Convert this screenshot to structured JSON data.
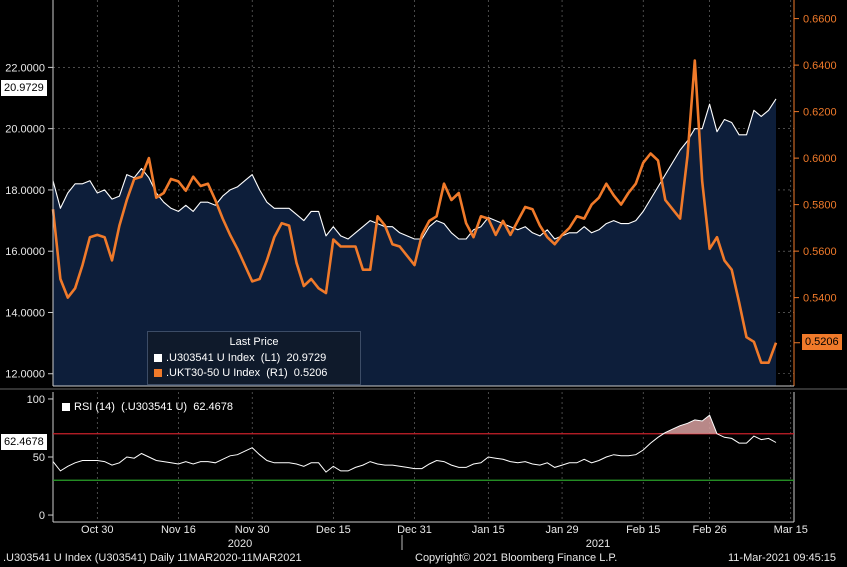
{
  "chart_data": {
    "type": "line",
    "x": [
      "Oct 22",
      "Oct 23",
      "Oct 26",
      "Oct 27",
      "Oct 28",
      "Oct 29",
      "Oct 30",
      "Nov 2",
      "Nov 3",
      "Nov 4",
      "Nov 5",
      "Nov 6",
      "Nov 9",
      "Nov 10",
      "Nov 11",
      "Nov 12",
      "Nov 13",
      "Nov 16",
      "Nov 17",
      "Nov 18",
      "Nov 19",
      "Nov 20",
      "Nov 23",
      "Nov 24",
      "Nov 25",
      "Nov 26",
      "Nov 27",
      "Nov 30",
      "Dec 1",
      "Dec 2",
      "Dec 3",
      "Dec 4",
      "Dec 7",
      "Dec 8",
      "Dec 9",
      "Dec 10",
      "Dec 11",
      "Dec 14",
      "Dec 15",
      "Dec 16",
      "Dec 17",
      "Dec 18",
      "Dec 21",
      "Dec 22",
      "Dec 23",
      "Dec 24",
      "Dec 28",
      "Dec 29",
      "Dec 30",
      "Dec 31",
      "Jan 4",
      "Jan 5",
      "Jan 6",
      "Jan 7",
      "Jan 8",
      "Jan 11",
      "Jan 12",
      "Jan 13",
      "Jan 14",
      "Jan 15",
      "Jan 18",
      "Jan 19",
      "Jan 20",
      "Jan 21",
      "Jan 22",
      "Jan 25",
      "Jan 26",
      "Jan 27",
      "Jan 28",
      "Jan 29",
      "Feb 1",
      "Feb 2",
      "Feb 3",
      "Feb 4",
      "Feb 5",
      "Feb 8",
      "Feb 9",
      "Feb 10",
      "Feb 11",
      "Feb 12",
      "Feb 15",
      "Feb 16",
      "Feb 17",
      "Feb 18",
      "Feb 19",
      "Feb 22",
      "Feb 23",
      "Feb 24",
      "Feb 25",
      "Feb 26",
      "Mar 1",
      "Mar 2",
      "Mar 3",
      "Mar 4",
      "Mar 5",
      "Mar 8",
      "Mar 9",
      "Mar 10",
      "Mar 11"
    ],
    "series": [
      {
        "name": ".U303541 U Index  (L1)",
        "axis": "left",
        "color": "#ffffff",
        "values": [
          18.3,
          17.4,
          17.9,
          18.2,
          18.2,
          18.3,
          17.9,
          18.0,
          17.7,
          17.8,
          18.5,
          18.4,
          18.7,
          18.4,
          17.9,
          17.6,
          17.4,
          17.3,
          17.5,
          17.3,
          17.6,
          17.6,
          17.5,
          17.8,
          18.0,
          18.1,
          18.3,
          18.5,
          18.0,
          17.6,
          17.4,
          17.4,
          17.4,
          17.2,
          17.0,
          17.3,
          17.3,
          16.5,
          16.8,
          16.5,
          16.4,
          16.6,
          16.8,
          17.0,
          16.9,
          16.8,
          16.8,
          16.6,
          16.5,
          16.4,
          16.4,
          16.8,
          17.0,
          16.9,
          16.6,
          16.4,
          16.4,
          16.7,
          16.8,
          17.1,
          17.0,
          16.9,
          16.8,
          16.7,
          16.8,
          16.6,
          16.5,
          16.7,
          16.4,
          16.5,
          16.6,
          16.6,
          16.8,
          16.6,
          16.7,
          16.9,
          17.0,
          16.9,
          16.9,
          17.0,
          17.3,
          17.7,
          18.1,
          18.5,
          18.9,
          19.3,
          19.6,
          20.0,
          20.0,
          20.8,
          19.9,
          20.3,
          20.2,
          19.8,
          19.8,
          20.6,
          20.4,
          20.6,
          20.9729
        ]
      },
      {
        "name": ".UKT30-50 U Index  (R1)",
        "axis": "right",
        "color": "#f07a2a",
        "values": [
          0.578,
          0.548,
          0.54,
          0.544,
          0.554,
          0.566,
          0.567,
          0.566,
          0.556,
          0.571,
          0.582,
          0.591,
          0.592,
          0.6,
          0.583,
          0.585,
          0.591,
          0.59,
          0.586,
          0.592,
          0.588,
          0.589,
          0.582,
          0.574,
          0.567,
          0.561,
          0.554,
          0.547,
          0.548,
          0.556,
          0.566,
          0.572,
          0.571,
          0.555,
          0.545,
          0.548,
          0.544,
          0.542,
          0.565,
          0.562,
          0.562,
          0.562,
          0.552,
          0.552,
          0.575,
          0.571,
          0.563,
          0.562,
          0.558,
          0.554,
          0.567,
          0.573,
          0.575,
          0.589,
          0.582,
          0.585,
          0.572,
          0.566,
          0.575,
          0.574,
          0.567,
          0.573,
          0.567,
          0.573,
          0.579,
          0.578,
          0.571,
          0.566,
          0.563,
          0.567,
          0.57,
          0.575,
          0.574,
          0.58,
          0.583,
          0.589,
          0.584,
          0.58,
          0.585,
          0.589,
          0.598,
          0.602,
          0.599,
          0.582,
          0.578,
          0.574,
          0.601,
          0.642,
          0.59,
          0.561,
          0.566,
          0.556,
          0.552,
          0.538,
          0.523,
          0.521,
          0.512,
          0.512,
          0.5206
        ]
      }
    ],
    "y_left": {
      "ticks": [
        "12.0000",
        "14.0000",
        "16.0000",
        "18.0000",
        "20.0000",
        "22.0000"
      ],
      "range": [
        11.6,
        24.2
      ]
    },
    "y_right": {
      "ticks": [
        "0.5400",
        "0.5600",
        "0.5800",
        "0.6000",
        "0.6200",
        "0.6400",
        "0.6600"
      ],
      "range": [
        0.502,
        0.668
      ]
    },
    "x_tick_labels": [
      "Oct 30",
      "Nov 16",
      "Nov 30",
      "Dec 15",
      "Dec 31",
      "Jan 15",
      "Jan 29",
      "Feb 15",
      "Feb 26",
      "Mar 15"
    ],
    "year_labels": [
      "2020",
      "2021"
    ],
    "last_price_badges": {
      "left": "20.9729",
      "right": "0.5206",
      "rsi": "62.4678"
    },
    "legend": {
      "title": "Last Price",
      "rows": [
        {
          "name": ".U303541 U Index  (L1)",
          "value": "20.9729",
          "color": "#ffffff"
        },
        {
          "name": ".UKT30-50 U Index  (R1)",
          "value": "0.5206",
          "color": "#f07a2a"
        }
      ]
    },
    "rsi": {
      "label": "RSI (14)  (.U303541 U)  62.4678",
      "ticks": [
        "0",
        "50",
        "100"
      ],
      "range": [
        -6,
        106
      ],
      "overbought": 70,
      "oversold": 30,
      "values": [
        46,
        38,
        42,
        45,
        47,
        47,
        47,
        46,
        43,
        45,
        50,
        49,
        53,
        50,
        47,
        46,
        45,
        44,
        46,
        44,
        46,
        46,
        45,
        48,
        51,
        52,
        55,
        58,
        52,
        47,
        45,
        45,
        45,
        44,
        42,
        45,
        45,
        37,
        42,
        38,
        38,
        41,
        43,
        46,
        44,
        43,
        43,
        42,
        41,
        40,
        40,
        44,
        47,
        46,
        43,
        41,
        41,
        44,
        45,
        50,
        49,
        48,
        46,
        45,
        46,
        44,
        43,
        45,
        41,
        43,
        45,
        45,
        48,
        45,
        47,
        50,
        52,
        51,
        51,
        52,
        56,
        62,
        67,
        71,
        74,
        77,
        79,
        82,
        81,
        86,
        70,
        67,
        66,
        62,
        62,
        68,
        65,
        66,
        62.4678
      ]
    },
    "grid": true
  },
  "footer": {
    "left": ".U303541 U Index (U303541)  Daily 11MAR2020-11MAR2021",
    "center": "Copyright© 2021 Bloomberg Finance L.P.",
    "right": "11-Mar-2021 09:45:15"
  },
  "colors": {
    "background": "#000000",
    "area_fill": "#0d1e3a",
    "white_line": "#ffffff",
    "orange_line": "#f07a2a",
    "overbought": "#c8202a",
    "oversold": "#2aa02a",
    "grid": "#7a7a7a"
  }
}
